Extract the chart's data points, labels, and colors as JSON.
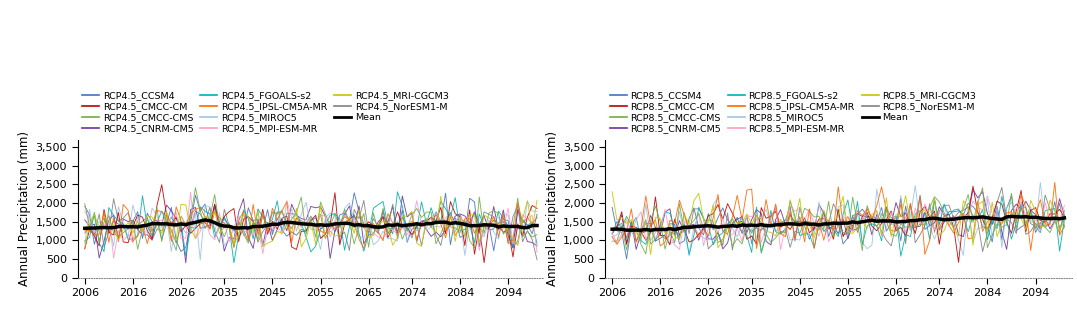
{
  "years_start": 2006,
  "years_end": 2100,
  "rcp45_legend_order": [
    "RCP4.5_CCSM4",
    "RCP4.5_CMCC-CM",
    "RCP4.5_CMCC-CMS",
    "RCP4.5_CNRM-CM5",
    "RCP4.5_FGOALS-s2",
    "RCP4.5_IPSL-CM5A-MR",
    "RCP4.5_MIROC5",
    "RCP4.5_MPI-ESM-MR",
    "RCP4.5_MRI-CGCM3",
    "RCP4.5_NorESM1-M",
    "Mean"
  ],
  "rcp85_legend_order": [
    "RCP8.5_CCSM4",
    "RCP8.5_CMCC-CM",
    "RCP8.5_CMCC-CMS",
    "RCP8.5_CNRM-CM5",
    "RCP8.5_FGOALS-s2",
    "RCP8.5_IPSL-CM5A-MR",
    "RCP8.5_MIROC5",
    "RCP8.5_MPI-ESM-MR",
    "RCP8.5_MRI-CGCM3",
    "RCP8.5_NorESM1-M",
    "Mean"
  ],
  "model_colors_map": {
    "CCSM4": "#4472C4",
    "CNRM-CM5": "#7030A0",
    "MIROC5": "#9DC3E6",
    "NorESM1-M": "#808080",
    "CMCC-CM": "#C00000",
    "FGOALS-s2": "#00B0B0",
    "MPI-ESM-MR": "#FF99CC",
    "CMCC-CMS": "#70AD47",
    "IPSL-CM5A-MR": "#FF6600",
    "MRI-CGCM3": "#C5C500"
  },
  "mean_color": "#000000",
  "ylabel": "Annual Precipitation (mm)",
  "xticks": [
    2006,
    2016,
    2026,
    2035,
    2045,
    2055,
    2065,
    2074,
    2084,
    2094
  ],
  "yticks": [
    0,
    500,
    1000,
    1500,
    2000,
    2500,
    3000,
    3500
  ],
  "ylim": [
    0,
    3700
  ],
  "xlim": [
    2004.5,
    2101.5
  ],
  "rcp45_base_mean": 1390,
  "rcp45_trend": 0.5,
  "rcp85_base_mean": 1300,
  "rcp85_trend": 3.5,
  "figsize": [
    10.77,
    3.21
  ],
  "dpi": 100,
  "linewidth_model": 0.65,
  "linewidth_mean": 2.5,
  "legend_fontsize": 6.8,
  "tick_fontsize": 8.0,
  "ylabel_fontsize": 8.5
}
